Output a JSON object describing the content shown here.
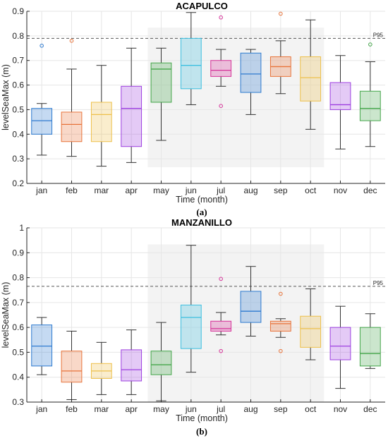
{
  "colors": [
    "#2e7bd0",
    "#e8743b",
    "#eec04b",
    "#9d3fe0",
    "#44a64a",
    "#3cbfe0",
    "#d63399",
    "#2e7bd0",
    "#e8743b",
    "#eec04b",
    "#9d3fe0",
    "#44a64a"
  ],
  "chart_data": [
    {
      "type": "box",
      "title": "ACAPULCO",
      "caption": "(a)",
      "xlabel": "Time (month)",
      "ylabel": "levelSeaMax (m)",
      "ylim": [
        0.2,
        0.9
      ],
      "yticks": [
        "0.2",
        "0.3",
        "0.4",
        "0.5",
        "0.6",
        "0.7",
        "0.8",
        "0.9"
      ],
      "categories": [
        "jan",
        "feb",
        "mar",
        "apr",
        "may",
        "jun",
        "jul",
        "aug",
        "sep",
        "oct",
        "nov",
        "dec"
      ],
      "shaded_months": [
        "may",
        "oct"
      ],
      "reference_line": {
        "label": "P95",
        "value": 0.79
      },
      "boxes": [
        {
          "month": "jan",
          "min": 0.315,
          "q1": 0.4,
          "median": 0.455,
          "q3": 0.505,
          "max": 0.525,
          "outliers": [
            0.76
          ]
        },
        {
          "month": "feb",
          "min": 0.31,
          "q1": 0.37,
          "median": 0.44,
          "q3": 0.49,
          "max": 0.665,
          "outliers": [
            0.78
          ]
        },
        {
          "month": "mar",
          "min": 0.27,
          "q1": 0.37,
          "median": 0.48,
          "q3": 0.53,
          "max": 0.68,
          "outliers": []
        },
        {
          "month": "apr",
          "min": 0.285,
          "q1": 0.35,
          "median": 0.505,
          "q3": 0.595,
          "max": 0.75,
          "outliers": []
        },
        {
          "month": "may",
          "min": 0.375,
          "q1": 0.53,
          "median": 0.665,
          "q3": 0.69,
          "max": 0.75,
          "outliers": []
        },
        {
          "month": "jun",
          "min": 0.52,
          "q1": 0.585,
          "median": 0.68,
          "q3": 0.79,
          "max": 0.895,
          "outliers": []
        },
        {
          "month": "jul",
          "min": 0.595,
          "q1": 0.635,
          "median": 0.66,
          "q3": 0.7,
          "max": 0.745,
          "outliers": [
            0.875,
            0.515
          ]
        },
        {
          "month": "aug",
          "min": 0.48,
          "q1": 0.57,
          "median": 0.645,
          "q3": 0.73,
          "max": 0.745,
          "outliers": []
        },
        {
          "month": "sep",
          "min": 0.565,
          "q1": 0.635,
          "median": 0.675,
          "q3": 0.715,
          "max": 0.78,
          "outliers": [
            0.89
          ]
        },
        {
          "month": "oct",
          "min": 0.42,
          "q1": 0.535,
          "median": 0.63,
          "q3": 0.715,
          "max": 0.865,
          "outliers": []
        },
        {
          "month": "nov",
          "min": 0.34,
          "q1": 0.5,
          "median": 0.52,
          "q3": 0.61,
          "max": 0.72,
          "outliers": []
        },
        {
          "month": "dec",
          "min": 0.35,
          "q1": 0.455,
          "median": 0.505,
          "q3": 0.575,
          "max": 0.695,
          "outliers": [
            0.765
          ]
        }
      ]
    },
    {
      "type": "box",
      "title": "MANZANILLO",
      "caption": "(b)",
      "xlabel": "Time (month)",
      "ylabel": "levelSeaMax (m)",
      "ylim": [
        0.3,
        1.0
      ],
      "yticks": [
        "0.3",
        "0.4",
        "0.5",
        "0.6",
        "0.7",
        "0.8",
        "0.9",
        "1"
      ],
      "categories": [
        "jan",
        "feb",
        "mar",
        "apr",
        "may",
        "jun",
        "jul",
        "aug",
        "sep",
        "oct",
        "nov",
        "dec"
      ],
      "shaded_months": [
        "may",
        "oct"
      ],
      "reference_line": {
        "label": "P95",
        "value": 0.765
      },
      "boxes": [
        {
          "month": "jan",
          "min": 0.41,
          "q1": 0.445,
          "median": 0.525,
          "q3": 0.61,
          "max": 0.64,
          "outliers": []
        },
        {
          "month": "feb",
          "min": 0.31,
          "q1": 0.38,
          "median": 0.425,
          "q3": 0.505,
          "max": 0.585,
          "outliers": []
        },
        {
          "month": "mar",
          "min": 0.33,
          "q1": 0.395,
          "median": 0.425,
          "q3": 0.455,
          "max": 0.54,
          "outliers": []
        },
        {
          "month": "apr",
          "min": 0.33,
          "q1": 0.385,
          "median": 0.43,
          "q3": 0.51,
          "max": 0.59,
          "outliers": []
        },
        {
          "month": "may",
          "min": 0.305,
          "q1": 0.41,
          "median": 0.45,
          "q3": 0.505,
          "max": 0.62,
          "outliers": []
        },
        {
          "month": "jun",
          "min": 0.42,
          "q1": 0.515,
          "median": 0.64,
          "q3": 0.69,
          "max": 0.93,
          "outliers": []
        },
        {
          "month": "jul",
          "min": 0.57,
          "q1": 0.585,
          "median": 0.595,
          "q3": 0.625,
          "max": 0.66,
          "outliers": [
            0.795,
            0.505
          ]
        },
        {
          "month": "aug",
          "min": 0.565,
          "q1": 0.62,
          "median": 0.665,
          "q3": 0.745,
          "max": 0.845,
          "outliers": []
        },
        {
          "month": "sep",
          "min": 0.56,
          "q1": 0.585,
          "median": 0.615,
          "q3": 0.625,
          "max": 0.635,
          "outliers": [
            0.735,
            0.505
          ]
        },
        {
          "month": "oct",
          "min": 0.47,
          "q1": 0.52,
          "median": 0.595,
          "q3": 0.645,
          "max": 0.755,
          "outliers": []
        },
        {
          "month": "nov",
          "min": 0.355,
          "q1": 0.47,
          "median": 0.525,
          "q3": 0.6,
          "max": 0.685,
          "outliers": []
        },
        {
          "month": "dec",
          "min": 0.435,
          "q1": 0.445,
          "median": 0.495,
          "q3": 0.6,
          "max": 0.655,
          "outliers": []
        }
      ]
    }
  ]
}
